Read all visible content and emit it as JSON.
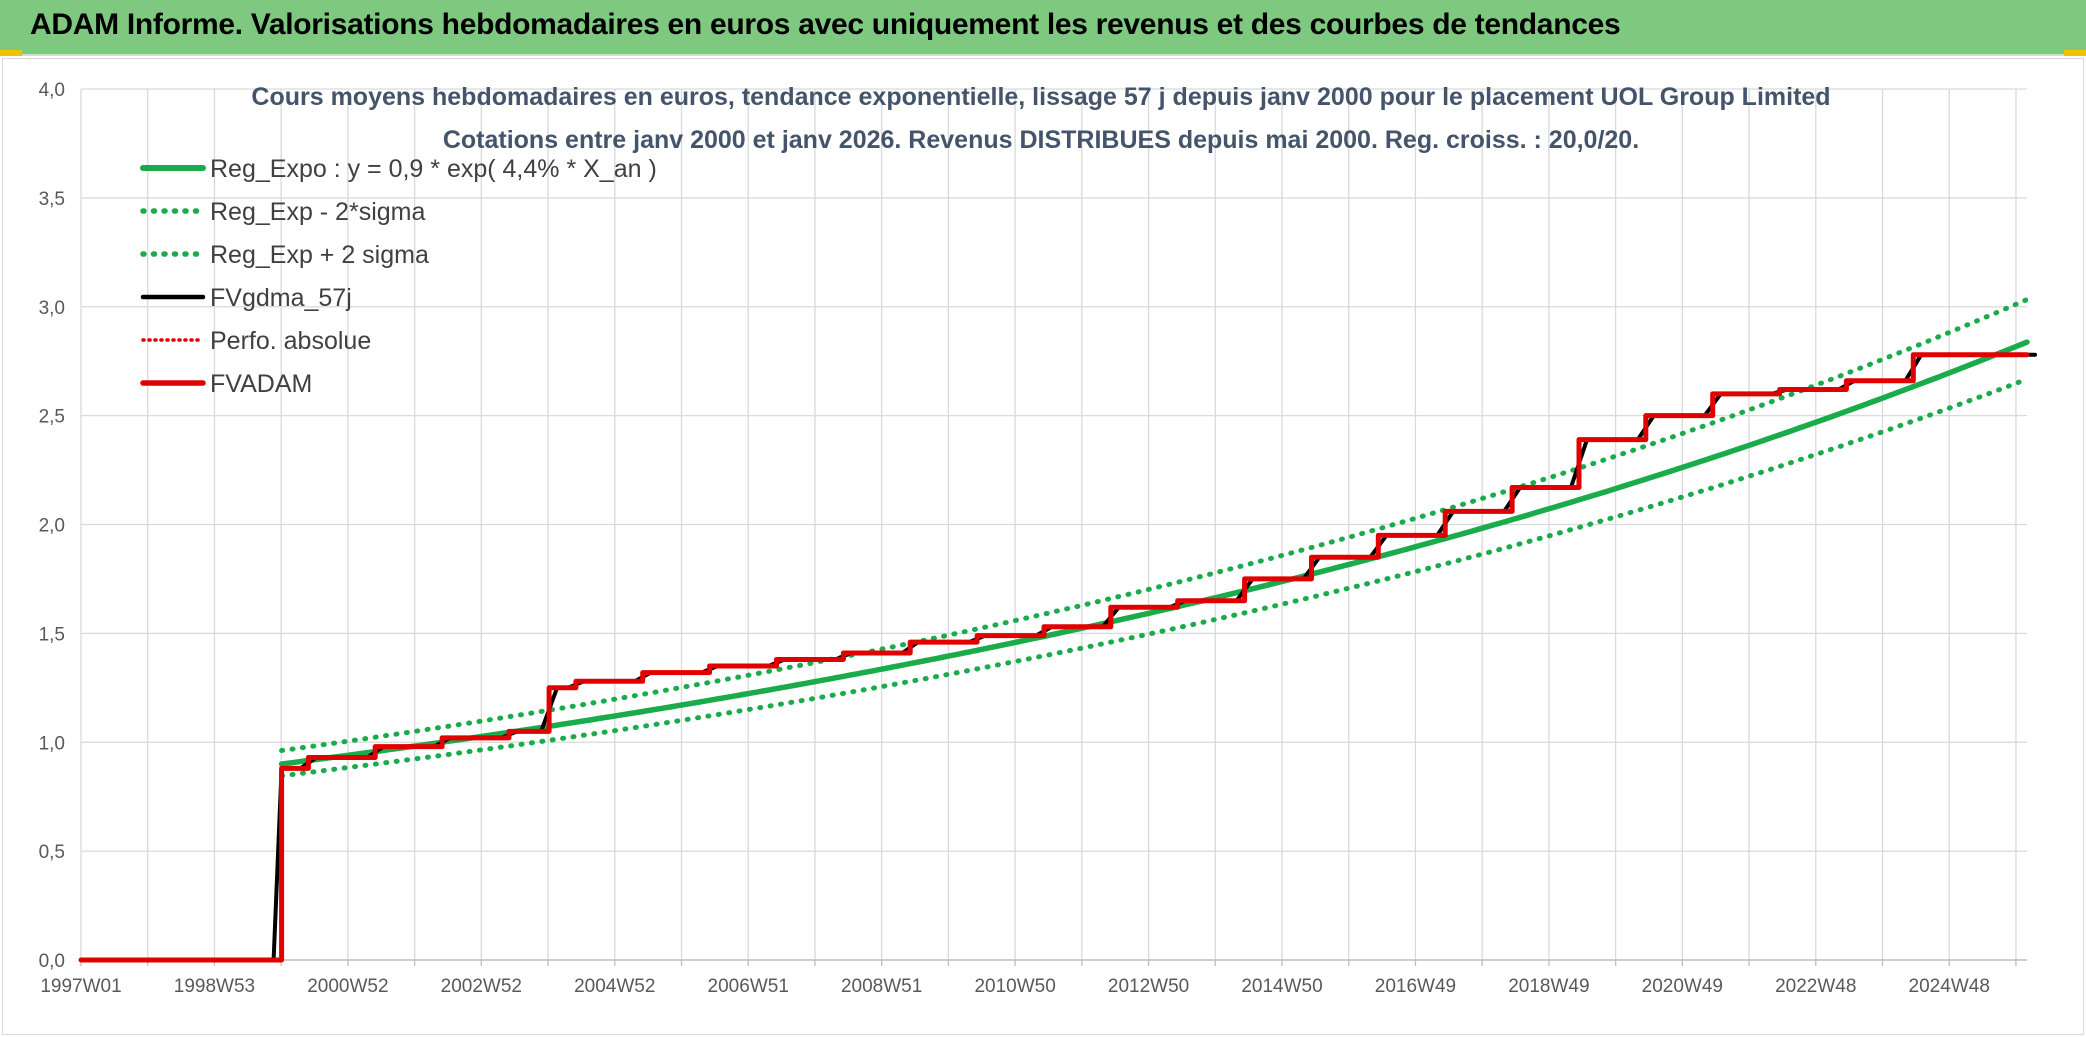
{
  "page": {
    "banner_title": "ADAM Informe. Valorisations hebdomadaires en euros avec uniquement les revenus et des courbes de tendances"
  },
  "chart_data": {
    "type": "line",
    "title_line1": "Cours moyens hebdomadaires en euros, tendance exponentielle, lissage 57 j depuis janv 2000 pour le placement UOL Group Limited",
    "title_line2": "Cotations entre janv 2000 et janv 2026. Revenus DISTRIBUES depuis mai 2000. Reg. croiss. : 20,0/20.",
    "x_tick_labels": [
      "1997W01",
      "1998W53",
      "2000W52",
      "2002W52",
      "2004W52",
      "2006W51",
      "2008W51",
      "2010W50",
      "2012W50",
      "2014W50",
      "2016W49",
      "2018W49",
      "2020W49",
      "2022W48",
      "2024W48"
    ],
    "x_range": [
      1997.0,
      2026.1
    ],
    "y_tick_labels": [
      "0,0",
      "0,5",
      "1,0",
      "1,5",
      "2,0",
      "2,5",
      "3,0",
      "3,5",
      "4,0"
    ],
    "ylim": [
      0,
      4.0
    ],
    "grid": true,
    "legend_position": "top-left",
    "series": [
      {
        "name": "Reg_Expo : y = 0,9 * exp( 4,4% *  X_an )",
        "color": "#1aab4b",
        "style": "solid",
        "kind": "expo",
        "a": 0.9,
        "r": 0.044,
        "x0": 2000.0,
        "x": [
          2000.0,
          2026.1
        ]
      },
      {
        "name": "Reg_Exp - 2*sigma",
        "color": "#1aab4b",
        "style": "dotted",
        "kind": "expo",
        "a": 0.846,
        "r": 0.044,
        "x0": 2000.0,
        "x": [
          2000.0,
          2026.1
        ]
      },
      {
        "name": "Reg_Exp + 2 sigma",
        "color": "#1aab4b",
        "style": "dotted",
        "kind": "expo",
        "a": 0.962,
        "r": 0.044,
        "x0": 2000.0,
        "x": [
          2000.0,
          2026.1
        ]
      },
      {
        "name": "FVgdma_57j",
        "color": "#000000",
        "style": "solid",
        "kind": "smooth",
        "steps": "fvadam_steps"
      },
      {
        "name": "Perfo. absolue",
        "color": "#e00000",
        "style": "dotted",
        "kind": "steps",
        "steps": "fvadam_steps"
      },
      {
        "name": "FVADAM",
        "color": "#e00000",
        "style": "solid",
        "kind": "steps",
        "steps": "fvadam_steps"
      }
    ],
    "fvadam_steps": [
      [
        1997.0,
        0.0
      ],
      [
        2000.0,
        0.88
      ],
      [
        2000.4,
        0.93
      ],
      [
        2001.4,
        0.98
      ],
      [
        2002.4,
        1.02
      ],
      [
        2003.4,
        1.05
      ],
      [
        2004.0,
        1.25
      ],
      [
        2004.4,
        1.28
      ],
      [
        2005.4,
        1.32
      ],
      [
        2006.4,
        1.35
      ],
      [
        2007.4,
        1.38
      ],
      [
        2008.4,
        1.41
      ],
      [
        2009.4,
        1.46
      ],
      [
        2010.4,
        1.49
      ],
      [
        2011.4,
        1.53
      ],
      [
        2012.4,
        1.62
      ],
      [
        2013.4,
        1.65
      ],
      [
        2014.4,
        1.75
      ],
      [
        2015.4,
        1.85
      ],
      [
        2016.4,
        1.95
      ],
      [
        2017.4,
        2.06
      ],
      [
        2018.4,
        2.17
      ],
      [
        2019.4,
        2.39
      ],
      [
        2020.4,
        2.5
      ],
      [
        2021.4,
        2.6
      ],
      [
        2022.4,
        2.62
      ],
      [
        2023.4,
        2.66
      ],
      [
        2024.4,
        2.78
      ],
      [
        2026.1,
        2.78
      ]
    ]
  }
}
